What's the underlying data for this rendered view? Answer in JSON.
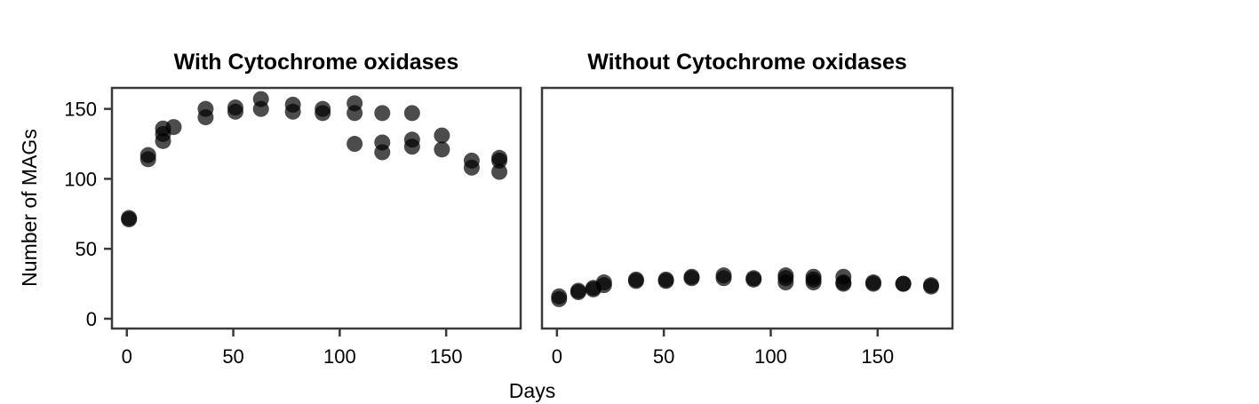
{
  "chart_data": {
    "type": "scatter",
    "xlabel": "Days",
    "ylabel": "Number of MAGs",
    "xlim": [
      -7,
      185
    ],
    "ylim": [
      -7,
      165
    ],
    "x_ticks": [
      0,
      50,
      100,
      150
    ],
    "y_ticks": [
      0,
      50,
      100,
      150
    ],
    "grid": false,
    "marker_color": "#000000",
    "panels": [
      {
        "title": "With Cytochrome oxidases",
        "points": [
          [
            1,
            71
          ],
          [
            1,
            72
          ],
          [
            10,
            114
          ],
          [
            10,
            117
          ],
          [
            17,
            127
          ],
          [
            17,
            132
          ],
          [
            17,
            136
          ],
          [
            22,
            137
          ],
          [
            37,
            144
          ],
          [
            37,
            150
          ],
          [
            51,
            148
          ],
          [
            51,
            151
          ],
          [
            63,
            150
          ],
          [
            63,
            157
          ],
          [
            78,
            148
          ],
          [
            78,
            153
          ],
          [
            92,
            147
          ],
          [
            92,
            150
          ],
          [
            107,
            125
          ],
          [
            107,
            147
          ],
          [
            107,
            154
          ],
          [
            120,
            119
          ],
          [
            120,
            126
          ],
          [
            120,
            147
          ],
          [
            134,
            123
          ],
          [
            134,
            128
          ],
          [
            134,
            147
          ],
          [
            148,
            121
          ],
          [
            148,
            131
          ],
          [
            162,
            108
          ],
          [
            162,
            113
          ],
          [
            175,
            105
          ],
          [
            175,
            113
          ],
          [
            175,
            115
          ]
        ]
      },
      {
        "title": "Without Cytochrome oxidases",
        "points": [
          [
            1,
            14
          ],
          [
            1,
            16
          ],
          [
            10,
            19
          ],
          [
            10,
            20
          ],
          [
            17,
            21
          ],
          [
            17,
            22
          ],
          [
            22,
            24
          ],
          [
            22,
            26
          ],
          [
            37,
            27
          ],
          [
            37,
            28
          ],
          [
            51,
            27
          ],
          [
            51,
            28
          ],
          [
            63,
            29
          ],
          [
            63,
            30
          ],
          [
            78,
            29
          ],
          [
            78,
            31
          ],
          [
            92,
            28
          ],
          [
            92,
            29
          ],
          [
            107,
            26
          ],
          [
            107,
            29
          ],
          [
            107,
            31
          ],
          [
            120,
            26
          ],
          [
            120,
            28
          ],
          [
            120,
            30
          ],
          [
            134,
            25
          ],
          [
            134,
            26
          ],
          [
            134,
            30
          ],
          [
            148,
            25
          ],
          [
            148,
            26
          ],
          [
            162,
            25
          ],
          [
            162,
            25
          ],
          [
            175,
            23
          ],
          [
            175,
            24
          ]
        ]
      }
    ]
  }
}
